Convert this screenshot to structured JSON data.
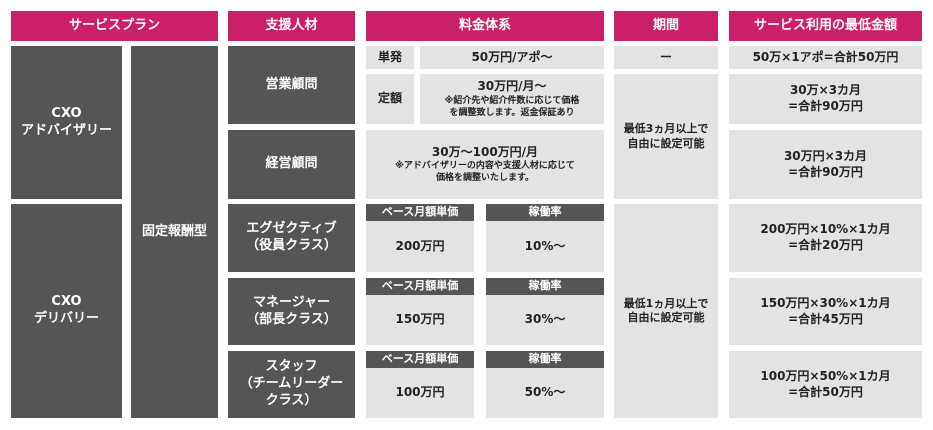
{
  "headers": {
    "plan": "サービスプラン",
    "talent": "支援人材",
    "fee": "料金体系",
    "period": "期間",
    "min_fee": "サービス利用の最低金額"
  },
  "plans": {
    "advisory": [
      "CXO",
      "アドバイザリー"
    ],
    "delivery": [
      "CXO",
      "デリバリー"
    ],
    "fixed": "固定報酬型"
  },
  "talent": {
    "sales": "営業顧問",
    "management": "経営顧問",
    "executive": [
      "エグゼクティブ",
      "（役員クラス）"
    ],
    "manager": [
      "マネージャー",
      "（部長クラス）"
    ],
    "staff": [
      "スタッフ",
      "（チームリーダー",
      "クラス）"
    ]
  },
  "fee": {
    "single_label": "単発",
    "single_value": "50万円/アポ〜",
    "fixed_label": "定額",
    "fixed_value": "30万円/月〜",
    "fixed_note": [
      "※紹介先や紹介件数に応じて価格",
      "を調整致します。返金保証あり"
    ],
    "mgmt_value": "30万〜100万円/月",
    "mgmt_note": [
      "※アドバイザリーの内容や支援人材に応じて",
      "価格を調整いたします。"
    ],
    "base_label": "ベース月額単価",
    "rate_label": "稼働率",
    "executive_base": "200万円",
    "executive_rate": "10%〜",
    "manager_base": "150万円",
    "manager_rate": "30%〜",
    "staff_base": "100万円",
    "staff_rate": "50%〜"
  },
  "period": {
    "single": "ー",
    "advisory": [
      "最低3ヵ月以上で",
      "自由に設定可能"
    ],
    "delivery": [
      "最低1ヵ月以上で",
      "自由に設定可能"
    ]
  },
  "min_fee": {
    "single": "50万×1アポ=合計50万円",
    "fixed": [
      "30万×3カ月",
      "=合計90万円"
    ],
    "mgmt": [
      "30万円×3カ月",
      "=合計90万円"
    ],
    "executive": [
      "200万円×10%×1カ月",
      "=合計20万円"
    ],
    "manager": [
      "150万円×30%×1カ月",
      "=合計45万円"
    ],
    "staff": [
      "100万円×50%×1カ月",
      "=合計50万円"
    ]
  }
}
